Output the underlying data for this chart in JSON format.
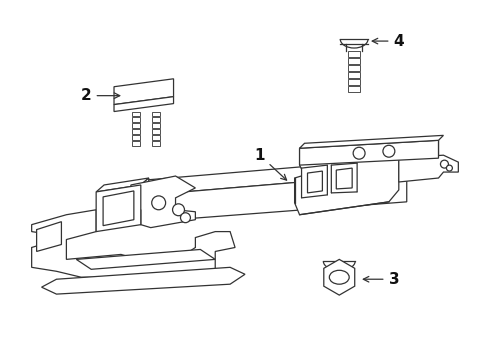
{
  "background_color": "#ffffff",
  "line_color": "#333333",
  "label_color": "#111111",
  "fig_width": 4.89,
  "fig_height": 3.6,
  "dpi": 100
}
